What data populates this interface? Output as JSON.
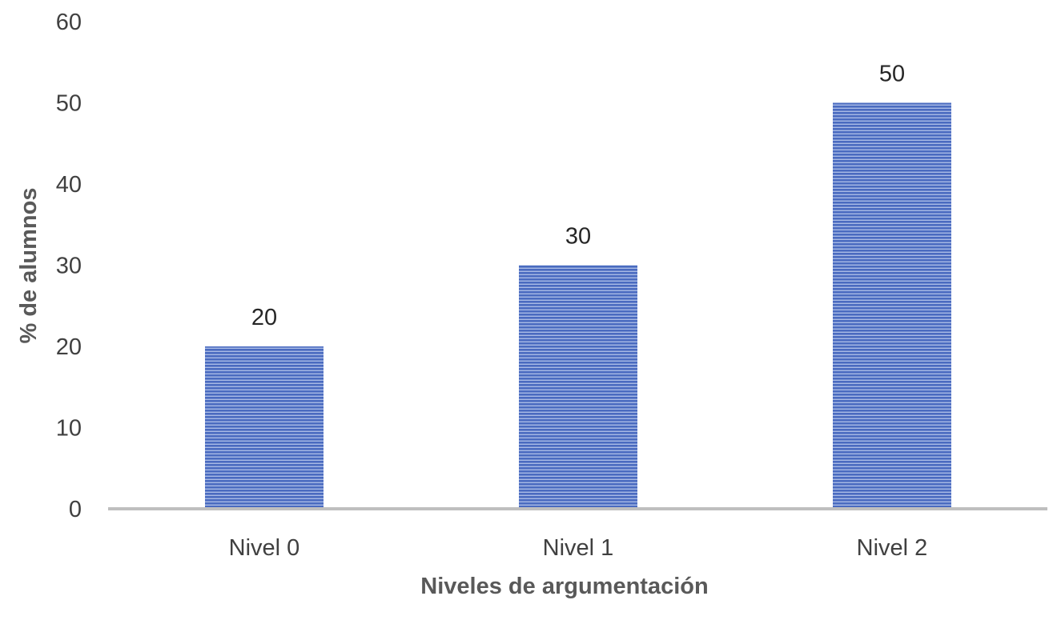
{
  "chart_data": {
    "type": "bar",
    "categories": [
      "Nivel 0",
      "Nivel 1",
      "Nivel 2"
    ],
    "values": [
      20,
      30,
      50
    ],
    "data_labels": [
      "20",
      "30",
      "50"
    ],
    "xlabel": "Niveles de argumentación",
    "ylabel": "% de alumnos",
    "ylim": [
      0,
      60
    ],
    "yticks": [
      0,
      10,
      20,
      30,
      40,
      50,
      60
    ],
    "grid": false,
    "bar_color": "#4a6bc0",
    "bar_stripe_color": "#a9bbe6",
    "axis_color": "#bfbfbf"
  }
}
